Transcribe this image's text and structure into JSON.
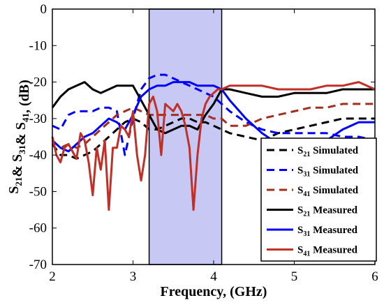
{
  "chart_data": {
    "type": "line",
    "title": "",
    "xlabel": "Frequency, (GHz)",
    "ylabel": "S21& S31& S41, (dB)",
    "xlim": [
      2,
      6
    ],
    "ylim": [
      -70,
      0
    ],
    "xticks": [
      2,
      3,
      4,
      5,
      6
    ],
    "yticks": [
      0,
      -10,
      -20,
      -30,
      -40,
      -50,
      -60,
      -70
    ],
    "grid": false,
    "legend_position": "bottom-right",
    "shaded_band": {
      "x_start": 3.2,
      "x_end": 4.1,
      "color": "#c8c8f5"
    },
    "series": [
      {
        "name": "S21 Simulated",
        "color": "#000000",
        "dashed": true,
        "x": [
          2.0,
          2.1,
          2.2,
          2.3,
          2.4,
          2.5,
          2.6,
          2.7,
          2.8,
          2.9,
          3.0,
          3.1,
          3.2,
          3.3,
          3.4,
          3.5,
          3.6,
          3.7,
          3.8,
          3.9,
          4.0,
          4.1,
          4.2,
          4.4,
          4.6,
          4.8,
          5.0,
          5.2,
          5.4,
          5.6,
          5.8,
          6.0
        ],
        "values": [
          -37,
          -40,
          -40,
          -41,
          -40,
          -39,
          -37,
          -35,
          -33,
          -31,
          -30,
          -31,
          -33,
          -33,
          -32,
          -31,
          -30,
          -30,
          -31,
          -31,
          -32,
          -33,
          -34,
          -35,
          -36,
          -34,
          -33,
          -32,
          -31,
          -30,
          -30,
          -30
        ]
      },
      {
        "name": "S31 Simulated",
        "color": "#0000ff",
        "dashed": true,
        "x": [
          2.0,
          2.1,
          2.2,
          2.3,
          2.4,
          2.5,
          2.6,
          2.7,
          2.8,
          2.9,
          3.0,
          3.1,
          3.2,
          3.3,
          3.4,
          3.5,
          3.6,
          3.7,
          3.8,
          3.9,
          4.0,
          4.1,
          4.2,
          4.4,
          4.6,
          4.8,
          5.0,
          5.2,
          5.4,
          5.6,
          5.8,
          6.0
        ],
        "values": [
          -32,
          -33,
          -29,
          -28,
          -28,
          -28,
          -27,
          -27,
          -28,
          -40,
          -30,
          -22,
          -19,
          -18,
          -18,
          -19,
          -20,
          -21,
          -22,
          -23,
          -24,
          -26,
          -28,
          -31,
          -33,
          -34,
          -34,
          -34,
          -34,
          -35,
          -35,
          -36
        ]
      },
      {
        "name": "S41 Simulated",
        "color": "#a03020",
        "dashed": true,
        "x": [
          2.0,
          2.1,
          2.2,
          2.3,
          2.4,
          2.5,
          2.6,
          2.7,
          2.8,
          2.9,
          3.0,
          3.1,
          3.2,
          3.3,
          3.4,
          3.5,
          3.6,
          3.7,
          3.8,
          3.9,
          4.0,
          4.1,
          4.2,
          4.4,
          4.6,
          4.8,
          5.0,
          5.2,
          5.4,
          5.6,
          5.8,
          6.0
        ],
        "values": [
          -36,
          -38,
          -37,
          -38,
          -37,
          -35,
          -33,
          -31,
          -29,
          -28,
          -27,
          -28,
          -29,
          -29,
          -29,
          -29,
          -29,
          -29,
          -29,
          -29,
          -30,
          -30,
          -32,
          -32,
          -30,
          -29,
          -28,
          -27,
          -27,
          -26,
          -26,
          -26
        ]
      },
      {
        "name": "S21 Measured",
        "color": "#000000",
        "dashed": false,
        "x": [
          2.0,
          2.1,
          2.2,
          2.3,
          2.4,
          2.5,
          2.6,
          2.7,
          2.8,
          2.9,
          3.0,
          3.1,
          3.2,
          3.3,
          3.4,
          3.5,
          3.6,
          3.7,
          3.8,
          3.9,
          4.0,
          4.1,
          4.2,
          4.4,
          4.6,
          4.8,
          5.0,
          5.2,
          5.4,
          5.6,
          5.8,
          6.0
        ],
        "values": [
          -27,
          -24,
          -22,
          -21,
          -20,
          -22,
          -23,
          -22,
          -21,
          -21,
          -21,
          -25,
          -29,
          -33,
          -34,
          -33,
          -32,
          -32,
          -33,
          -29,
          -26,
          -22,
          -22,
          -23,
          -24,
          -24,
          -23,
          -23,
          -23,
          -22,
          -22,
          -22
        ]
      },
      {
        "name": "S31 Measured",
        "color": "#0000ff",
        "dashed": false,
        "x": [
          2.0,
          2.1,
          2.2,
          2.3,
          2.4,
          2.5,
          2.6,
          2.7,
          2.8,
          2.9,
          3.0,
          3.1,
          3.2,
          3.3,
          3.4,
          3.5,
          3.6,
          3.7,
          3.8,
          3.9,
          4.0,
          4.1,
          4.2,
          4.4,
          4.6,
          4.8,
          5.0,
          5.2,
          5.4,
          5.6,
          5.8,
          6.0
        ],
        "values": [
          -36,
          -38,
          -39,
          -37,
          -35,
          -34,
          -32,
          -30,
          -31,
          -33,
          -29,
          -24,
          -22,
          -21,
          -21,
          -20,
          -20,
          -20,
          -21,
          -21,
          -21,
          -22,
          -25,
          -30,
          -34,
          -37,
          -37,
          -37,
          -36,
          -33,
          -31,
          -31
        ]
      },
      {
        "name": "S41 Measured",
        "color": "#c03028",
        "dashed": false,
        "x": [
          2.0,
          2.05,
          2.1,
          2.15,
          2.2,
          2.3,
          2.35,
          2.4,
          2.45,
          2.5,
          2.55,
          2.6,
          2.65,
          2.7,
          2.75,
          2.8,
          2.85,
          2.9,
          2.95,
          3.0,
          3.05,
          3.1,
          3.15,
          3.2,
          3.25,
          3.3,
          3.35,
          3.4,
          3.45,
          3.5,
          3.55,
          3.6,
          3.65,
          3.7,
          3.75,
          3.8,
          3.85,
          3.9,
          3.95,
          4.0,
          4.05,
          4.1,
          4.2,
          4.4,
          4.6,
          4.8,
          5.0,
          5.2,
          5.4,
          5.6,
          5.8,
          6.0
        ],
        "values": [
          -35,
          -40,
          -42,
          -38,
          -37,
          -41,
          -34,
          -36,
          -42,
          -51,
          -38,
          -44,
          -36,
          -55,
          -38,
          -38,
          -32,
          -33,
          -35,
          -28,
          -40,
          -47,
          -40,
          -26,
          -24,
          -28,
          -40,
          -26,
          -27,
          -28,
          -26,
          -28,
          -32,
          -38,
          -55,
          -40,
          -30,
          -26,
          -24,
          -23,
          -22,
          -22,
          -21,
          -21,
          -21,
          -22,
          -22,
          -22,
          -21,
          -21,
          -20,
          -22
        ]
      }
    ]
  }
}
